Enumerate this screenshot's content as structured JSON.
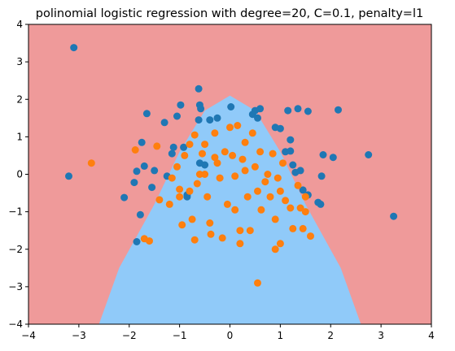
{
  "chart_data": {
    "type": "scatter",
    "title": "polinomial logistic regression with degree=20, C=0.1, penalty=l1",
    "xlabel": "",
    "ylabel": "",
    "xlim": [
      -4,
      4
    ],
    "ylim": [
      -4,
      4
    ],
    "xticks": [
      -4,
      -3,
      -2,
      -1,
      0,
      1,
      2,
      3,
      4
    ],
    "yticks": [
      -4,
      -3,
      -2,
      -1,
      0,
      1,
      2,
      3,
      4
    ],
    "grid": false,
    "regions": {
      "outside_color": "#ef9a9a",
      "inside_color": "#90caf9",
      "boundary": [
        [
          -2.6,
          -4
        ],
        [
          -2.2,
          -2.5
        ],
        [
          -1.5,
          -0.8
        ],
        [
          -1.0,
          0.6
        ],
        [
          -0.5,
          1.7
        ],
        [
          0,
          2.1
        ],
        [
          0.5,
          1.7
        ],
        [
          1.0,
          0.6
        ],
        [
          1.5,
          -0.8
        ],
        [
          2.2,
          -2.5
        ],
        [
          2.6,
          -4
        ]
      ]
    },
    "series": [
      {
        "color": "#1f77b4",
        "points": [
          [
            -3.1,
            3.38
          ],
          [
            -3.2,
            -0.05
          ],
          [
            -2.1,
            -0.62
          ],
          [
            -1.9,
            -0.22
          ],
          [
            -1.85,
            0.08
          ],
          [
            -1.75,
            0.85
          ],
          [
            -1.65,
            1.62
          ],
          [
            -1.7,
            0.22
          ],
          [
            -1.5,
            0.1
          ],
          [
            -1.55,
            -0.35
          ],
          [
            -1.3,
            1.38
          ],
          [
            -1.25,
            -0.05
          ],
          [
            -1.15,
            0.55
          ],
          [
            -1.12,
            0.72
          ],
          [
            -1.05,
            1.55
          ],
          [
            -0.98,
            1.85
          ],
          [
            -0.92,
            0.72
          ],
          [
            -0.85,
            -0.55
          ],
          [
            -0.62,
            2.28
          ],
          [
            -0.6,
            1.85
          ],
          [
            -0.58,
            1.75
          ],
          [
            -0.62,
            1.45
          ],
          [
            -0.4,
            1.45
          ],
          [
            -0.25,
            1.5
          ],
          [
            -0.6,
            0.3
          ],
          [
            -0.5,
            0.25
          ],
          [
            0.02,
            1.8
          ],
          [
            0.45,
            1.6
          ],
          [
            0.5,
            1.7
          ],
          [
            0.6,
            1.75
          ],
          [
            0.55,
            1.5
          ],
          [
            0.9,
            1.25
          ],
          [
            1.0,
            1.22
          ],
          [
            1.15,
            1.7
          ],
          [
            1.2,
            0.92
          ],
          [
            1.1,
            0.6
          ],
          [
            1.2,
            0.62
          ],
          [
            1.35,
            1.75
          ],
          [
            1.55,
            1.68
          ],
          [
            1.25,
            0.25
          ],
          [
            1.4,
            0.1
          ],
          [
            1.45,
            -0.42
          ],
          [
            1.55,
            -0.55
          ],
          [
            1.75,
            -0.75
          ],
          [
            1.8,
            -0.8
          ],
          [
            1.82,
            -0.05
          ],
          [
            1.85,
            0.52
          ],
          [
            2.05,
            0.45
          ],
          [
            2.15,
            1.72
          ],
          [
            2.75,
            0.52
          ],
          [
            3.25,
            -1.12
          ],
          [
            -1.85,
            -1.8
          ],
          [
            -1.78,
            -1.08
          ],
          [
            -0.85,
            -0.6
          ],
          [
            1.3,
            0.05
          ]
        ]
      },
      {
        "color": "#ff7f0e",
        "points": [
          [
            -2.75,
            0.3
          ],
          [
            -1.88,
            0.65
          ],
          [
            -1.45,
            0.75
          ],
          [
            -1.4,
            -0.68
          ],
          [
            -1.7,
            -1.72
          ],
          [
            -1.6,
            -1.78
          ],
          [
            -1.2,
            -0.8
          ],
          [
            -1.15,
            -0.1
          ],
          [
            -1.05,
            0.2
          ],
          [
            -1.0,
            -0.4
          ],
          [
            -1.0,
            -0.6
          ],
          [
            -0.95,
            -1.35
          ],
          [
            -0.9,
            0.5
          ],
          [
            -0.8,
            -0.45
          ],
          [
            -0.75,
            -1.2
          ],
          [
            -0.7,
            -1.75
          ],
          [
            -0.65,
            -0.25
          ],
          [
            -0.6,
            0.0
          ],
          [
            -0.55,
            0.55
          ],
          [
            -0.5,
            0.8
          ],
          [
            -0.45,
            -0.6
          ],
          [
            -0.4,
            -1.3
          ],
          [
            -0.38,
            -1.6
          ],
          [
            -0.3,
            1.1
          ],
          [
            -0.25,
            0.3
          ],
          [
            -0.2,
            -0.1
          ],
          [
            -0.15,
            -1.7
          ],
          [
            -0.1,
            0.6
          ],
          [
            -0.05,
            -0.8
          ],
          [
            0.0,
            1.25
          ],
          [
            0.05,
            0.5
          ],
          [
            0.1,
            -0.05
          ],
          [
            0.1,
            -0.95
          ],
          [
            0.15,
            1.3
          ],
          [
            0.2,
            -1.5
          ],
          [
            0.2,
            -1.85
          ],
          [
            0.25,
            0.4
          ],
          [
            0.3,
            0.85
          ],
          [
            0.35,
            -0.6
          ],
          [
            0.4,
            -1.5
          ],
          [
            0.45,
            1.1
          ],
          [
            0.5,
            0.2
          ],
          [
            0.55,
            -0.45
          ],
          [
            0.6,
            0.6
          ],
          [
            0.62,
            -0.95
          ],
          [
            0.7,
            -0.2
          ],
          [
            0.75,
            0.0
          ],
          [
            0.8,
            -0.6
          ],
          [
            0.85,
            0.55
          ],
          [
            0.9,
            -1.2
          ],
          [
            0.9,
            -2.0
          ],
          [
            0.95,
            -0.1
          ],
          [
            1.0,
            -0.45
          ],
          [
            1.05,
            0.3
          ],
          [
            1.1,
            -0.7
          ],
          [
            1.0,
            -1.85
          ],
          [
            1.2,
            -0.9
          ],
          [
            1.25,
            -1.45
          ],
          [
            1.35,
            -0.3
          ],
          [
            1.4,
            -0.9
          ],
          [
            1.45,
            -1.45
          ],
          [
            1.5,
            -0.6
          ],
          [
            1.5,
            -1.0
          ],
          [
            1.6,
            -1.65
          ],
          [
            0.55,
            -2.9
          ],
          [
            -0.8,
            0.8
          ],
          [
            -0.7,
            1.05
          ],
          [
            -0.5,
            0.0
          ],
          [
            0.3,
            0.1
          ],
          [
            -0.3,
            0.45
          ]
        ]
      }
    ]
  }
}
